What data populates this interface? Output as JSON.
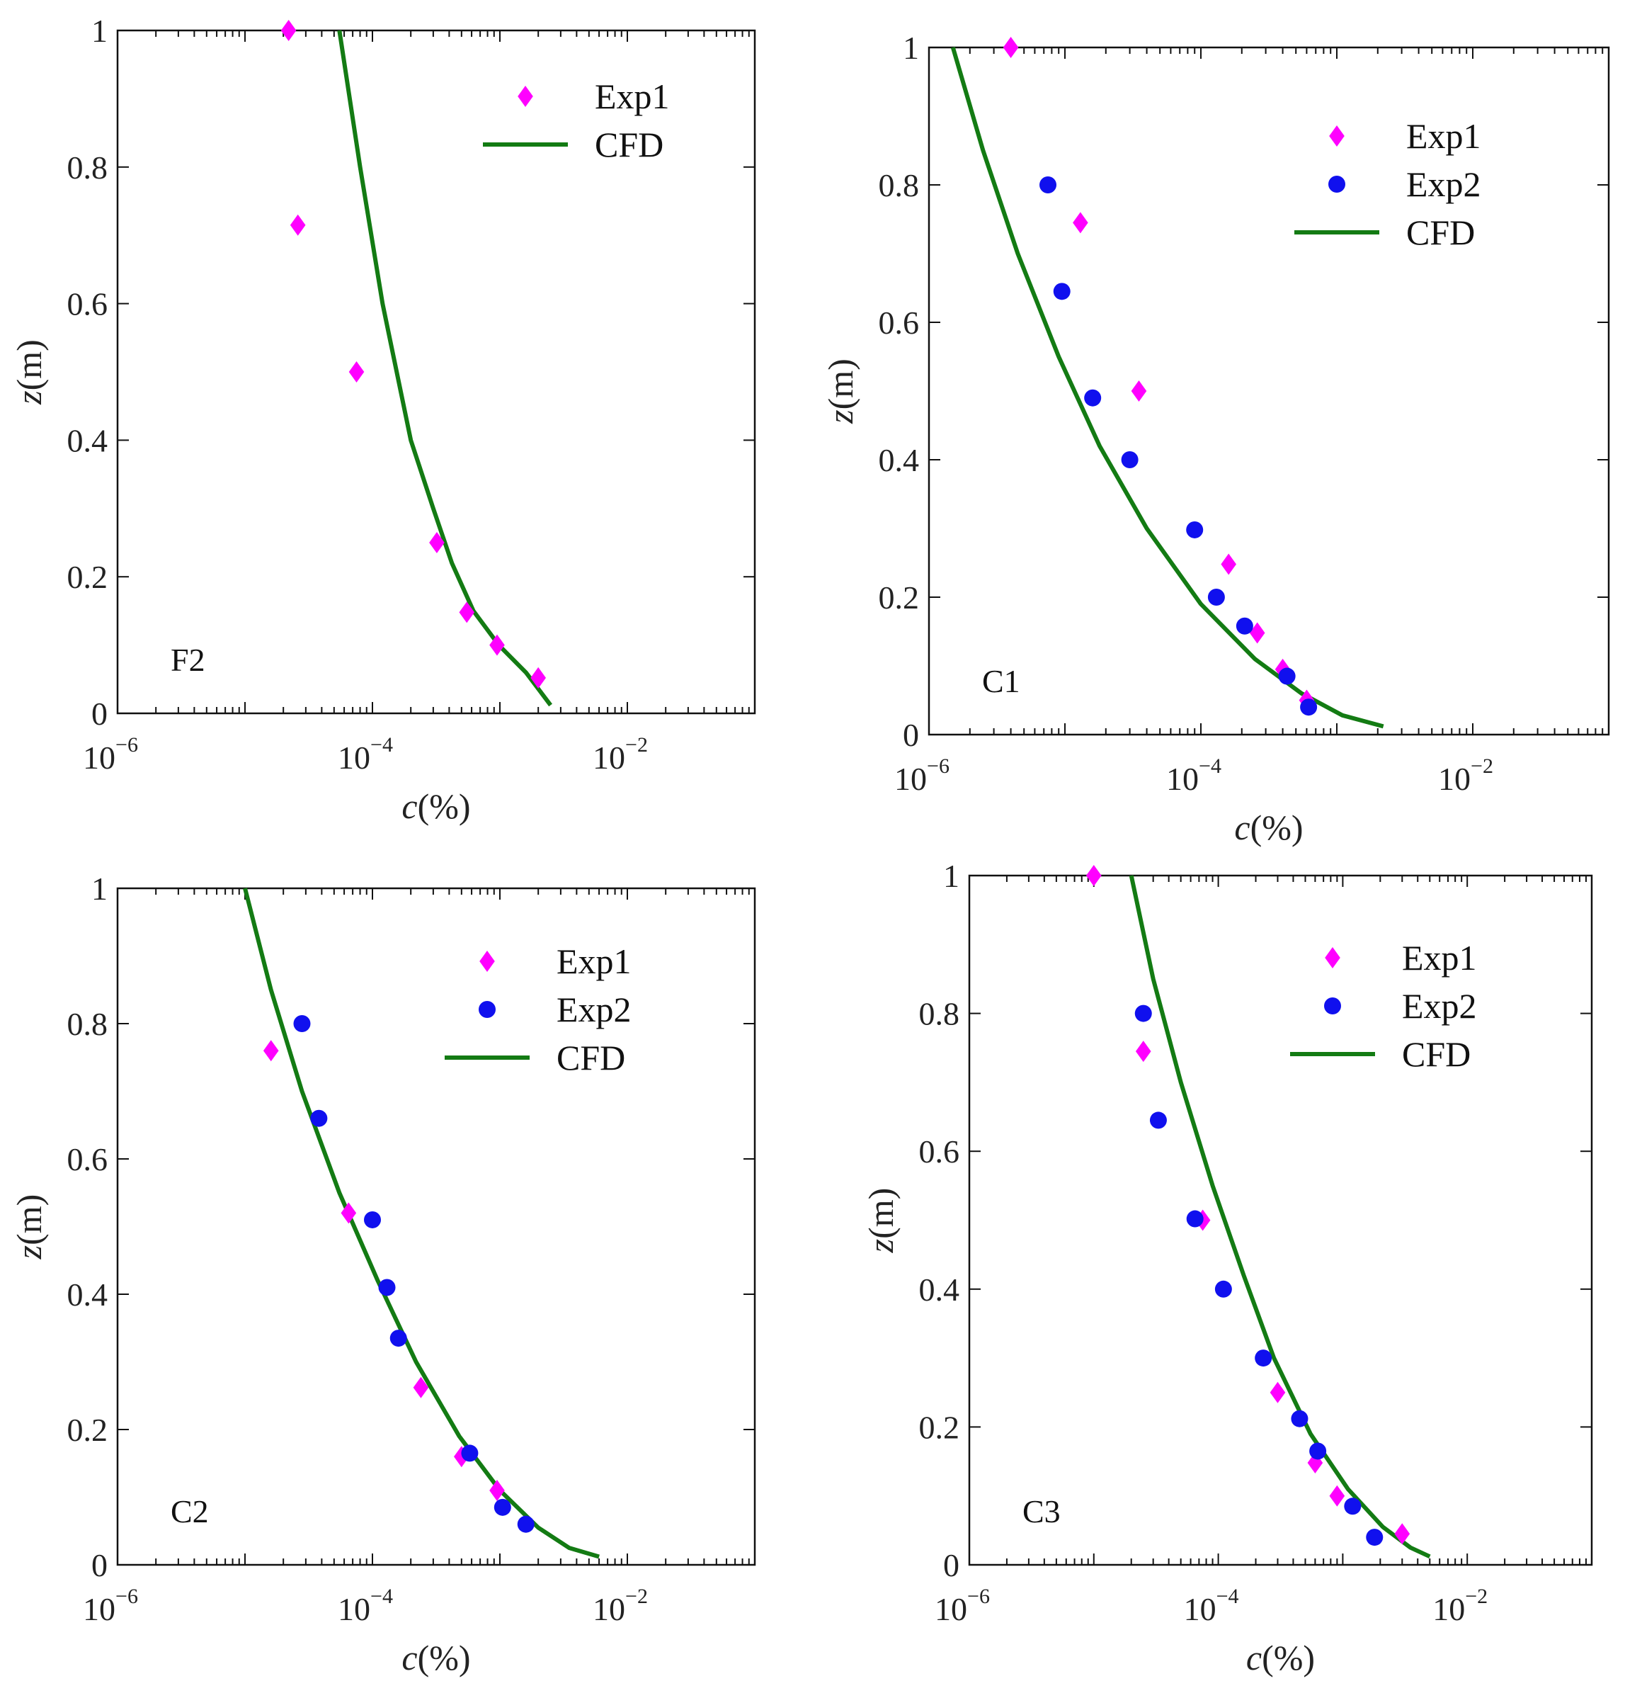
{
  "chart_data": [
    {
      "type": "scatter",
      "panel_label": "F2",
      "xscale": "log",
      "xlim_exp": [
        -6,
        -1
      ],
      "ylim": [
        0,
        1
      ],
      "x_ticks": [
        {
          "base": "10",
          "exp": "−6",
          "e": -6
        },
        {
          "base": "10",
          "exp": "−4",
          "e": -4
        },
        {
          "base": "10",
          "exp": "−2",
          "e": -2
        }
      ],
      "y_ticks": [
        {
          "v": 0,
          "label": "0"
        },
        {
          "v": 0.2,
          "label": "0.2"
        },
        {
          "v": 0.4,
          "label": "0.4"
        },
        {
          "v": 0.6,
          "label": "0.6"
        },
        {
          "v": 0.8,
          "label": "0.8"
        },
        {
          "v": 1,
          "label": "1"
        }
      ],
      "xlabel": {
        "var": "c",
        "rest": "(%)"
      },
      "ylabel": {
        "var": "z",
        "rest": "(m)"
      },
      "legend": {
        "position": "top-right"
      },
      "series": [
        {
          "name": "Exp1",
          "kind": "diamond",
          "color": "#ff00ff",
          "points": [
            [
              2.2e-05,
              1.0
            ],
            [
              2.6e-05,
              0.715
            ],
            [
              7.5e-05,
              0.5
            ],
            [
              0.00032,
              0.25
            ],
            [
              0.00055,
              0.148
            ],
            [
              0.00095,
              0.1
            ],
            [
              0.002,
              0.052
            ]
          ]
        },
        {
          "name": "CFD",
          "kind": "line",
          "color": "#137b13",
          "points": [
            [
              5.5e-05,
              1.0
            ],
            [
              8e-05,
              0.8
            ],
            [
              0.00012,
              0.6
            ],
            [
              0.0002,
              0.4
            ],
            [
              0.0003,
              0.3
            ],
            [
              0.00042,
              0.22
            ],
            [
              0.00062,
              0.15
            ],
            [
              0.00098,
              0.1
            ],
            [
              0.0016,
              0.06
            ],
            [
              0.0025,
              0.012
            ]
          ]
        }
      ]
    },
    {
      "type": "scatter",
      "panel_label": "C1",
      "xscale": "log",
      "xlim_exp": [
        -6,
        -1
      ],
      "ylim": [
        0,
        1
      ],
      "x_ticks": [
        {
          "base": "10",
          "exp": "−6",
          "e": -6
        },
        {
          "base": "10",
          "exp": "−4",
          "e": -4
        },
        {
          "base": "10",
          "exp": "−2",
          "e": -2
        }
      ],
      "y_ticks": [
        {
          "v": 0,
          "label": "0"
        },
        {
          "v": 0.2,
          "label": "0.2"
        },
        {
          "v": 0.4,
          "label": "0.4"
        },
        {
          "v": 0.6,
          "label": "0.6"
        },
        {
          "v": 0.8,
          "label": "0.8"
        },
        {
          "v": 1,
          "label": "1"
        }
      ],
      "xlabel": {
        "var": "c",
        "rest": "(%)"
      },
      "ylabel": {
        "var": "z",
        "rest": "(m)"
      },
      "legend": {
        "position": "top-right"
      },
      "series": [
        {
          "name": "Exp1",
          "kind": "diamond",
          "color": "#ff00ff",
          "points": [
            [
              4e-06,
              1.0
            ],
            [
              1.3e-05,
              0.745
            ],
            [
              3.5e-05,
              0.5
            ],
            [
              0.00016,
              0.248
            ],
            [
              0.00026,
              0.148
            ],
            [
              0.0004,
              0.095
            ],
            [
              0.0006,
              0.05
            ]
          ]
        },
        {
          "name": "Exp2",
          "kind": "circle",
          "color": "#1010ee",
          "points": [
            [
              7.5e-06,
              0.8
            ],
            [
              9.5e-06,
              0.645
            ],
            [
              1.6e-05,
              0.49
            ],
            [
              3e-05,
              0.4
            ],
            [
              9e-05,
              0.298
            ],
            [
              0.00013,
              0.2
            ],
            [
              0.00021,
              0.158
            ],
            [
              0.00043,
              0.085
            ],
            [
              0.00062,
              0.04
            ]
          ]
        },
        {
          "name": "CFD",
          "kind": "line",
          "color": "#137b13",
          "points": [
            [
              1.5e-06,
              1.0
            ],
            [
              2.5e-06,
              0.85
            ],
            [
              4.5e-06,
              0.7
            ],
            [
              9e-06,
              0.55
            ],
            [
              1.8e-05,
              0.42
            ],
            [
              4e-05,
              0.3
            ],
            [
              0.0001,
              0.19
            ],
            [
              0.00025,
              0.11
            ],
            [
              0.00055,
              0.06
            ],
            [
              0.0011,
              0.028
            ],
            [
              0.0022,
              0.012
            ]
          ]
        }
      ]
    },
    {
      "type": "scatter",
      "panel_label": "C2",
      "xscale": "log",
      "xlim_exp": [
        -6,
        -1
      ],
      "ylim": [
        0,
        1
      ],
      "x_ticks": [
        {
          "base": "10",
          "exp": "−6",
          "e": -6
        },
        {
          "base": "10",
          "exp": "−4",
          "e": -4
        },
        {
          "base": "10",
          "exp": "−2",
          "e": -2
        }
      ],
      "y_ticks": [
        {
          "v": 0,
          "label": "0"
        },
        {
          "v": 0.2,
          "label": "0.2"
        },
        {
          "v": 0.4,
          "label": "0.4"
        },
        {
          "v": 0.6,
          "label": "0.6"
        },
        {
          "v": 0.8,
          "label": "0.8"
        },
        {
          "v": 1,
          "label": "1"
        }
      ],
      "xlabel": {
        "var": "c",
        "rest": "(%)"
      },
      "ylabel": {
        "var": "z",
        "rest": "(m)"
      },
      "legend": {
        "position": "top-right"
      },
      "series": [
        {
          "name": "Exp1",
          "kind": "diamond",
          "color": "#ff00ff",
          "points": [
            [
              1.6e-05,
              0.76
            ],
            [
              6.5e-05,
              0.52
            ],
            [
              0.00024,
              0.262
            ],
            [
              0.0005,
              0.16
            ],
            [
              0.00095,
              0.11
            ]
          ]
        },
        {
          "name": "Exp2",
          "kind": "circle",
          "color": "#1010ee",
          "points": [
            [
              2.8e-05,
              0.8
            ],
            [
              3.8e-05,
              0.66
            ],
            [
              0.0001,
              0.51
            ],
            [
              0.00013,
              0.41
            ],
            [
              0.00016,
              0.335
            ],
            [
              0.00058,
              0.165
            ],
            [
              0.00105,
              0.085
            ],
            [
              0.0016,
              0.06
            ]
          ]
        },
        {
          "name": "CFD",
          "kind": "line",
          "color": "#137b13",
          "points": [
            [
              1e-05,
              1.0
            ],
            [
              1.6e-05,
              0.85
            ],
            [
              2.8e-05,
              0.7
            ],
            [
              5.5e-05,
              0.55
            ],
            [
              0.00011,
              0.42
            ],
            [
              0.00022,
              0.3
            ],
            [
              0.00048,
              0.19
            ],
            [
              0.001,
              0.11
            ],
            [
              0.002,
              0.055
            ],
            [
              0.0035,
              0.025
            ],
            [
              0.006,
              0.012
            ]
          ]
        }
      ]
    },
    {
      "type": "scatter",
      "panel_label": "C3",
      "xscale": "log",
      "xlim_exp": [
        -6,
        -1
      ],
      "ylim": [
        0,
        1
      ],
      "x_ticks": [
        {
          "base": "10",
          "exp": "−6",
          "e": -6
        },
        {
          "base": "10",
          "exp": "−4",
          "e": -4
        },
        {
          "base": "10",
          "exp": "−2",
          "e": -2
        }
      ],
      "y_ticks": [
        {
          "v": 0,
          "label": "0"
        },
        {
          "v": 0.2,
          "label": "0.2"
        },
        {
          "v": 0.4,
          "label": "0.4"
        },
        {
          "v": 0.6,
          "label": "0.6"
        },
        {
          "v": 0.8,
          "label": "0.8"
        },
        {
          "v": 1,
          "label": "1"
        }
      ],
      "xlabel": {
        "var": "c",
        "rest": "(%)"
      },
      "ylabel": {
        "var": "z",
        "rest": "(m)"
      },
      "legend": {
        "position": "top-right"
      },
      "series": [
        {
          "name": "Exp1",
          "kind": "diamond",
          "color": "#ff00ff",
          "points": [
            [
              1e-05,
              1.0
            ],
            [
              2.5e-05,
              0.745
            ],
            [
              7.5e-05,
              0.5
            ],
            [
              0.0003,
              0.25
            ],
            [
              0.0006,
              0.148
            ],
            [
              0.0009,
              0.1
            ],
            [
              0.003,
              0.045
            ]
          ]
        },
        {
          "name": "Exp2",
          "kind": "circle",
          "color": "#1010ee",
          "points": [
            [
              2.5e-05,
              0.8
            ],
            [
              3.3e-05,
              0.645
            ],
            [
              6.5e-05,
              0.502
            ],
            [
              0.00011,
              0.4
            ],
            [
              0.00023,
              0.3
            ],
            [
              0.00045,
              0.212
            ],
            [
              0.00063,
              0.165
            ],
            [
              0.0012,
              0.085
            ],
            [
              0.0018,
              0.04
            ]
          ]
        },
        {
          "name": "CFD",
          "kind": "line",
          "color": "#137b13",
          "points": [
            [
              2e-05,
              1.0
            ],
            [
              3e-05,
              0.85
            ],
            [
              5e-05,
              0.7
            ],
            [
              9e-05,
              0.55
            ],
            [
              0.00016,
              0.42
            ],
            [
              0.00028,
              0.3
            ],
            [
              0.00055,
              0.19
            ],
            [
              0.0011,
              0.11
            ],
            [
              0.0021,
              0.055
            ],
            [
              0.0035,
              0.025
            ],
            [
              0.005,
              0.012
            ]
          ]
        }
      ]
    }
  ]
}
